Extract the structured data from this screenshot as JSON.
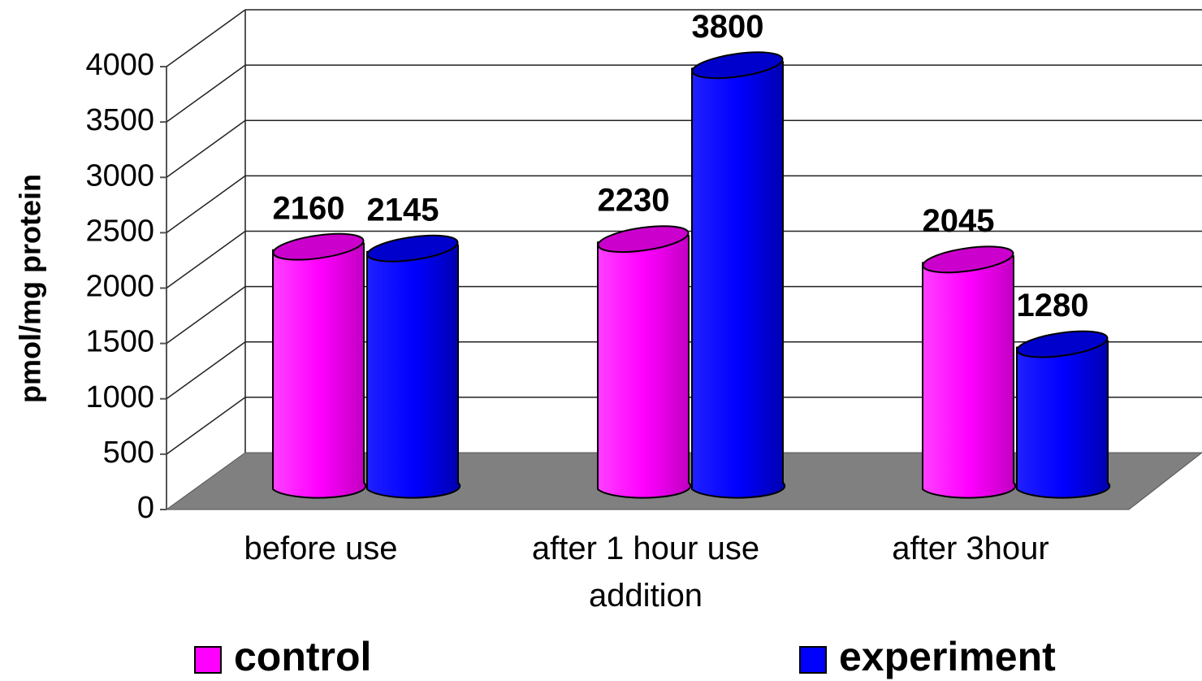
{
  "chart_data": {
    "type": "bar3d",
    "y_label": "pmol/mg protein",
    "categories": [
      "before use",
      "after 1 hour use addition",
      "after 3hour"
    ],
    "series": [
      {
        "name": "control",
        "color": "#ff00ff",
        "values": [
          2160,
          2230,
          2045
        ]
      },
      {
        "name": "experiment",
        "color": "#0000ff",
        "values": [
          2145,
          3800,
          1280
        ]
      }
    ],
    "ylim": [
      0,
      4000
    ],
    "yticks": [
      0,
      500,
      1000,
      1500,
      2000,
      2500,
      3000,
      3500,
      4000
    ],
    "grid": true,
    "legend": "bottom"
  }
}
